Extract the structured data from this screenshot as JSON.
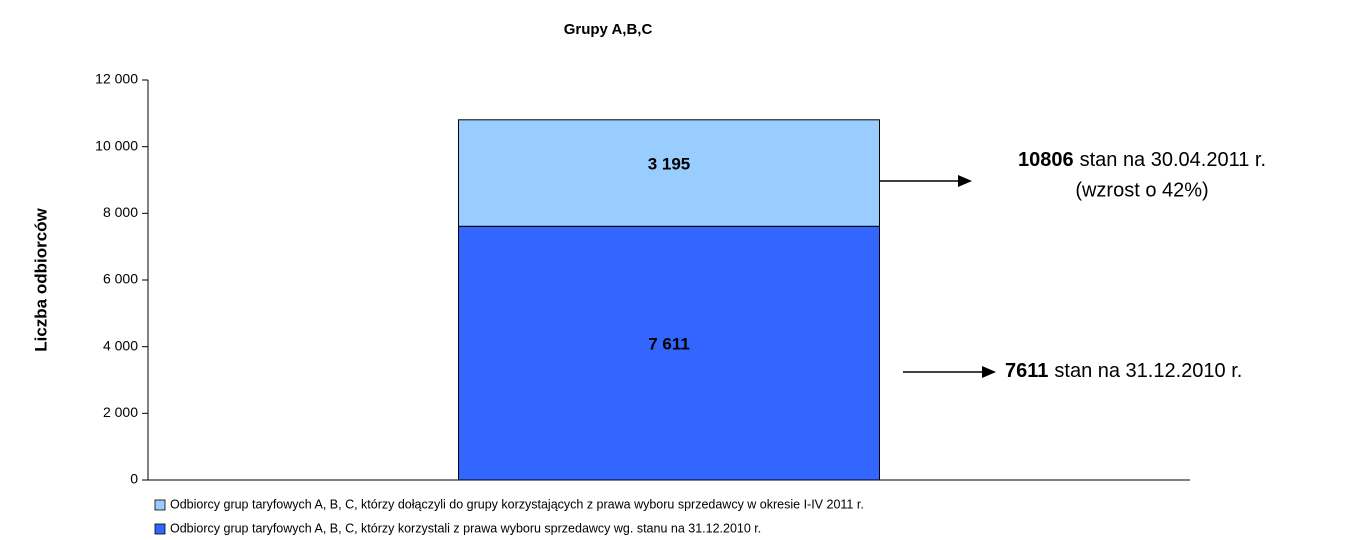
{
  "chart_data": {
    "type": "stacked_bar",
    "title": "Grupy A,B,C",
    "y_label": "Liczba odbiorców",
    "categories": [
      null
    ],
    "series": [
      {
        "name": "Odbiorcy grup taryfowych A, B, C, którzy korzystali z prawa wyboru sprzedawcy wg. stanu na 31.12.2010 r.",
        "color": "#3366ff",
        "values": [
          7611
        ],
        "value_labels": [
          "7 611"
        ]
      },
      {
        "name": "Odbiorcy grup taryfowych A, B, C, którzy dołączyli do grupy korzystających z prawa wyboru sprzedawcy w okresie I-IV 2011 r.",
        "color": "#99ccff",
        "values": [
          3195
        ],
        "value_labels": [
          "3 195"
        ]
      }
    ],
    "ylim": [
      0,
      12000
    ],
    "yticks": [
      0,
      {
        "value": 2000,
        "label": "2 000"
      },
      {
        "value": 4000,
        "label": "4 000"
      },
      {
        "value": 6000,
        "label": "6 000"
      },
      {
        "value": 8000,
        "label": "8 000"
      },
      {
        "value": 10000,
        "label": "10 000"
      },
      {
        "value": 12000,
        "label": "12 000"
      }
    ],
    "annotations": [
      {
        "bold": "10806",
        "text": "stan na 30.04.2011 r.",
        "text2": "(wzrost o 42%)"
      },
      {
        "bold": "7611",
        "text": "stan na 31.12.2010 r."
      }
    ]
  }
}
